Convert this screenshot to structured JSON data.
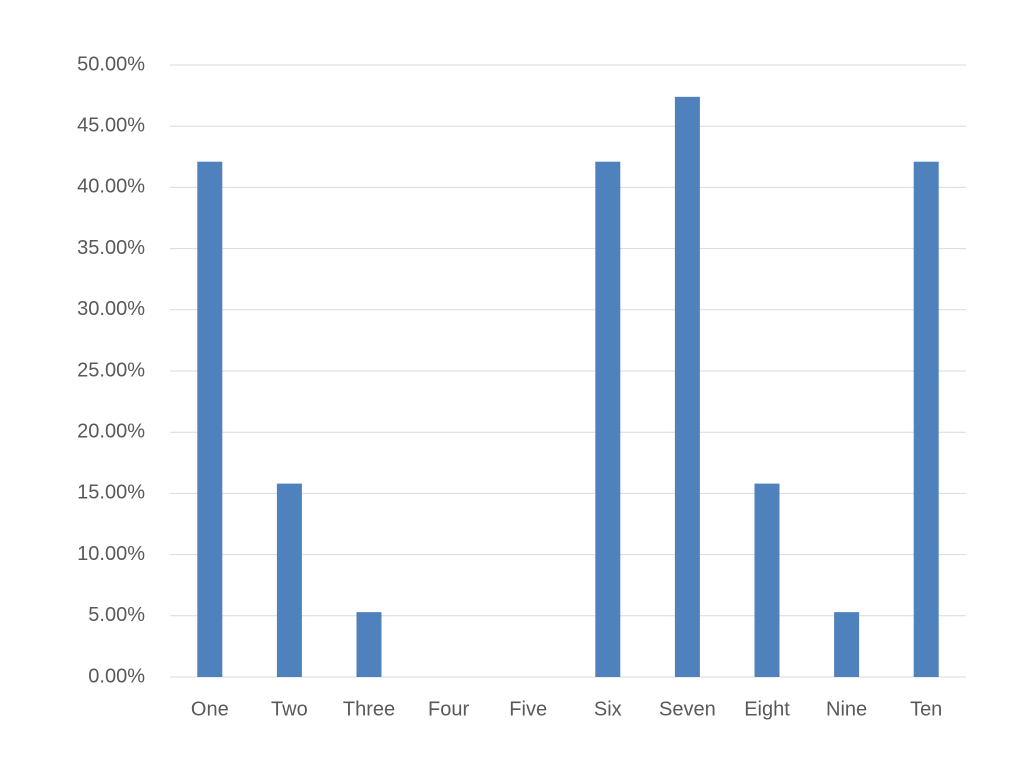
{
  "chart_data": {
    "type": "bar",
    "categories": [
      "One",
      "Two",
      "Three",
      "Four",
      "Five",
      "Six",
      "Seven",
      "Eight",
      "Nine",
      "Ten"
    ],
    "values": [
      42.1,
      15.8,
      5.3,
      0,
      0,
      42.1,
      47.4,
      15.8,
      5.3,
      42.1
    ],
    "color": "#4f81bd",
    "ylim": [
      0,
      50
    ],
    "yticks": [
      {
        "value": 0,
        "label": "0.00%"
      },
      {
        "value": 5,
        "label": "5.00%"
      },
      {
        "value": 10,
        "label": "10.00%"
      },
      {
        "value": 15,
        "label": "15.00%"
      },
      {
        "value": 20,
        "label": "20.00%"
      },
      {
        "value": 25,
        "label": "25.00%"
      },
      {
        "value": 30,
        "label": "30.00%"
      },
      {
        "value": 35,
        "label": "35.00%"
      },
      {
        "value": 40,
        "label": "40.00%"
      },
      {
        "value": 45,
        "label": "45.00%"
      },
      {
        "value": 50,
        "label": "50.00%"
      }
    ],
    "grid": true
  }
}
